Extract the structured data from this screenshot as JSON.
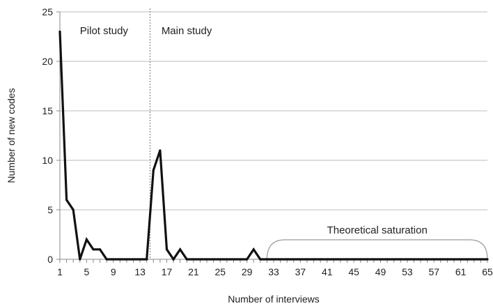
{
  "chart_data": {
    "type": "line",
    "title": "",
    "xlabel": "Number of interviews",
    "ylabel": "Number of new codes",
    "xlim": [
      1,
      65
    ],
    "ylim": [
      0,
      25
    ],
    "y_ticks": [
      0,
      5,
      10,
      15,
      20,
      25
    ],
    "x_ticks": [
      1,
      5,
      9,
      13,
      17,
      21,
      25,
      29,
      33,
      37,
      41,
      45,
      49,
      53,
      57,
      61,
      65
    ],
    "grid": "horizontal",
    "legend": "none",
    "series": [
      {
        "x": [
          1,
          2,
          3,
          4,
          5,
          6,
          7,
          8,
          9,
          10,
          11,
          12,
          13,
          14,
          15,
          16,
          17,
          18,
          19,
          20,
          21,
          22,
          23,
          24,
          25,
          26,
          27,
          28,
          29,
          30,
          31,
          32,
          33,
          34,
          35,
          36,
          37,
          38,
          39,
          40,
          41,
          42,
          43,
          44,
          45,
          46,
          47,
          48,
          49,
          50,
          51,
          52,
          53,
          54,
          55,
          56,
          57,
          58,
          59,
          60,
          61,
          62,
          63,
          64,
          65
        ],
        "values": [
          23,
          6,
          5,
          0,
          2,
          1,
          1,
          0,
          0,
          0,
          0,
          0,
          0,
          0,
          9,
          11,
          1,
          0,
          1,
          0,
          0,
          0,
          0,
          0,
          0,
          0,
          0,
          0,
          0,
          1,
          0,
          0,
          0,
          0,
          0,
          0,
          0,
          0,
          0,
          0,
          0,
          0,
          0,
          0,
          0,
          0,
          0,
          0,
          0,
          0,
          0,
          0,
          0,
          0,
          0,
          0,
          0,
          0,
          0,
          0,
          0,
          0,
          0,
          0,
          0
        ]
      }
    ],
    "annotations": {
      "pilot_label": "Pilot study",
      "main_label": "Main study",
      "saturation_label": "Theoretical saturation",
      "divider_x": 14.5,
      "saturation_range": [
        32,
        65
      ]
    },
    "colors": {
      "line": "#111111",
      "grid": "#bdbdbd",
      "axis": "#888888",
      "bracket": "#9a9a9a",
      "divider": "#888888"
    }
  }
}
